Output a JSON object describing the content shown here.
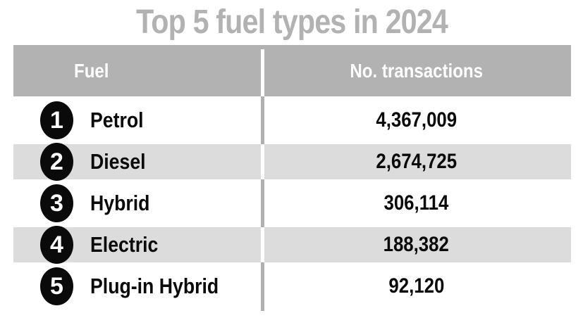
{
  "title": "Top 5 fuel types in 2024",
  "chart_data": {
    "type": "table",
    "title": "Top 5 fuel types in 2024",
    "columns": [
      "Fuel",
      "No. transactions"
    ],
    "rows": [
      {
        "rank": "1",
        "fuel": "Petrol",
        "transactions": 4367009,
        "transactions_label": "4,367,009"
      },
      {
        "rank": "2",
        "fuel": "Diesel",
        "transactions": 2674725,
        "transactions_label": "2,674,725"
      },
      {
        "rank": "3",
        "fuel": "Hybrid",
        "transactions": 306114,
        "transactions_label": "306,114"
      },
      {
        "rank": "4",
        "fuel": "Electric",
        "transactions": 188382,
        "transactions_label": "188,382"
      },
      {
        "rank": "5",
        "fuel": "Plug-in Hybrid",
        "transactions": 92120,
        "transactions_label": "92,120"
      }
    ],
    "layout": {
      "shaded_row_indexes": [
        1,
        3
      ],
      "rank_badge_style": "black-circle-white-number"
    }
  },
  "colors": {
    "title_text": "#b2b2b2",
    "header_background": "#b2b2b2",
    "header_text": "#ffffff",
    "shaded_row_background": "#dcdcdc",
    "body_text": "#0a0a0a",
    "rank_badge_background": "#0a0a0a",
    "rank_badge_text": "#ffffff",
    "divider_on_white": "#b0b0b0",
    "divider_on_shade": "#ffffff",
    "page_background": "#ffffff"
  }
}
